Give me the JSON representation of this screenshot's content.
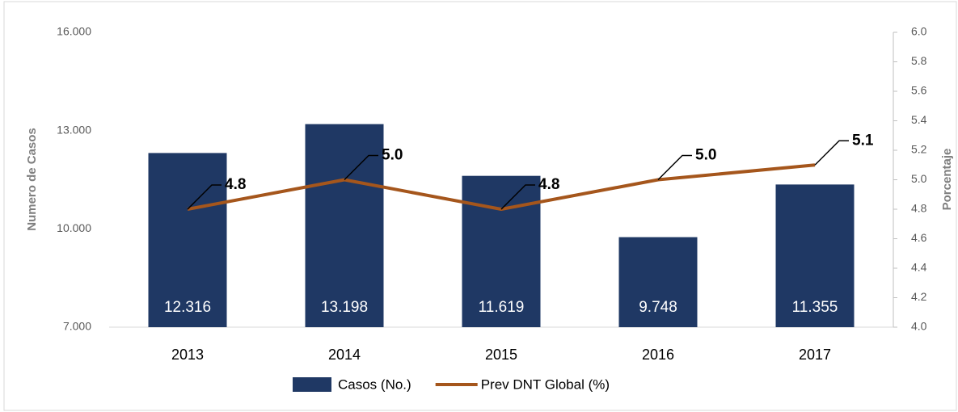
{
  "chart_data": {
    "type": "bar_line",
    "categories": [
      "2013",
      "2014",
      "2015",
      "2016",
      "2017"
    ],
    "series": [
      {
        "name": "Casos (No.)",
        "type": "bar",
        "color": "#1f3864",
        "values": [
          12316,
          13198,
          11619,
          9748,
          11355
        ],
        "value_labels": [
          "12.316",
          "13.198",
          "11.619",
          "9.748",
          "11.355"
        ]
      },
      {
        "name": "Prev DNT Global (%)",
        "type": "line",
        "axis": "y2",
        "color": "#a5561c",
        "values": [
          4.8,
          5.0,
          4.8,
          5.0,
          5.1
        ],
        "value_labels": [
          "4.8",
          "5.0",
          "4.8",
          "5.0",
          "5.1"
        ]
      }
    ],
    "ylabel": "Numero de Casos",
    "y2label": "Porcentaje",
    "ylim": [
      7000,
      16000
    ],
    "yticks": [
      {
        "value": 7000,
        "label": "7.000"
      },
      {
        "value": 10000,
        "label": "10.000"
      },
      {
        "value": 13000,
        "label": "13.000"
      },
      {
        "value": 16000,
        "label": "16.000"
      }
    ],
    "y2lim": [
      4.0,
      6.0
    ],
    "y2ticks": [
      {
        "value": 4.0,
        "label": "4.0"
      },
      4.2,
      4.4,
      4.6,
      4.8,
      {
        "value": 5.0,
        "label": "5.0"
      },
      5.2,
      5.4,
      5.6,
      5.8,
      {
        "value": 6.0,
        "label": "6.0"
      }
    ],
    "legend": "bottom"
  }
}
